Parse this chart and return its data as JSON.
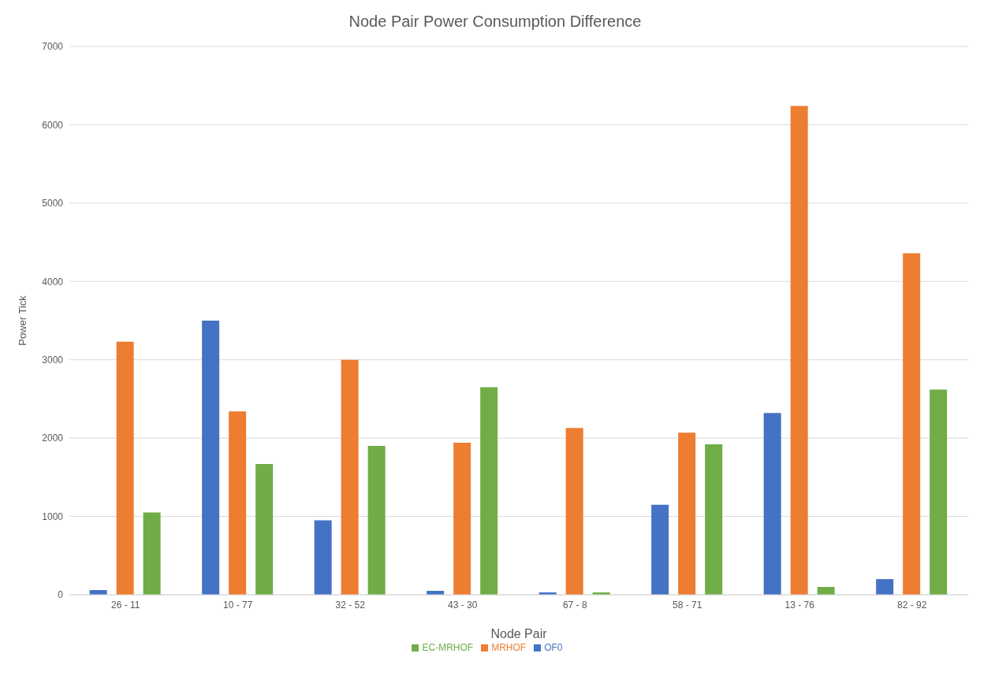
{
  "chart_data": {
    "type": "bar",
    "title": "Node Pair Power Consumption Difference",
    "xlabel": "Node Pair",
    "ylabel": "Power Tick",
    "categories": [
      "26 - 11",
      "10 - 77",
      "32 - 52",
      "43 - 30",
      "67 - 8",
      "58 - 71",
      "13 - 76",
      "82 - 92"
    ],
    "series": [
      {
        "name": "OF0",
        "color": "#4472c4",
        "values": [
          60,
          3500,
          950,
          50,
          30,
          1150,
          2320,
          200
        ]
      },
      {
        "name": "MRHOF",
        "color": "#ed7d31",
        "values": [
          3230,
          2340,
          3000,
          1940,
          2130,
          2070,
          6240,
          4360
        ]
      },
      {
        "name": "EC-MRHOF",
        "color": "#70ad47",
        "values": [
          1050,
          1670,
          1900,
          2650,
          30,
          1920,
          100,
          2620
        ]
      }
    ],
    "ylim": [
      0,
      7000
    ],
    "yticks": [
      0,
      1000,
      2000,
      3000,
      4000,
      5000,
      6000,
      7000
    ],
    "grid": "y",
    "legend": "bottom"
  }
}
